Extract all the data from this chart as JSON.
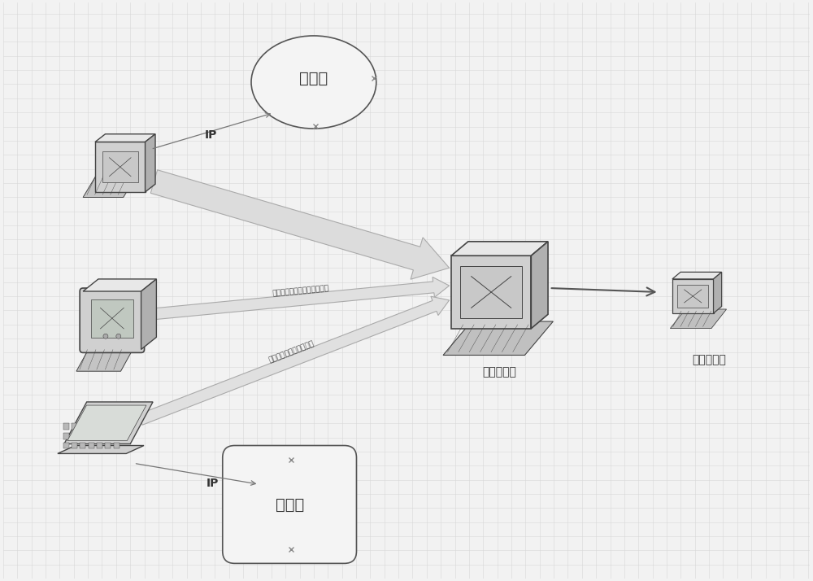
{
  "background_color": "#f2f2f2",
  "grid_color": "#d8d8d8",
  "white_list_label": "白名单",
  "black_list_label": "黑名单",
  "outer_server_label": "外网服务器",
  "inner_server_label": "内网服务器",
  "ip_label": "IP",
  "arrow1_label": "普通告警，网络运维人员确认",
  "arrow2_label": "网络入侵可能，严重告警",
  "text_color": "#333333",
  "face_light": "#e8e8e8",
  "face_mid": "#d0d0d0",
  "face_dark": "#b0b0b0",
  "edge_color": "#444444",
  "arrow_fill": "#e0dede",
  "arrow_edge": "#888888",
  "pink_tint": "#e8e0e0"
}
